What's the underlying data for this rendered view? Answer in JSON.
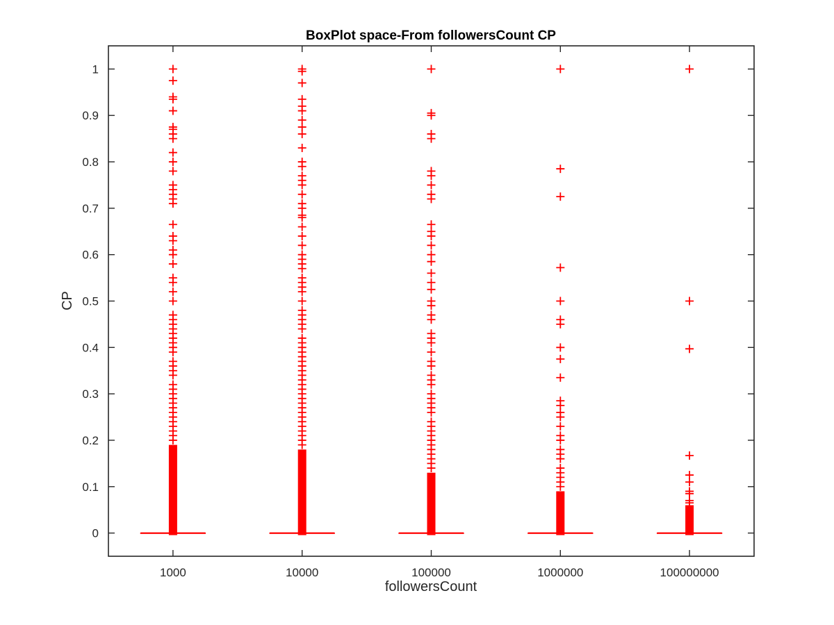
{
  "chart_data": {
    "type": "boxplot",
    "title": "BoxPlot space-From followersCount CP",
    "xlabel": "followersCount",
    "ylabel": "CP",
    "ylim": [
      -0.05,
      1.05
    ],
    "yticks": [
      0,
      0.1,
      0.2,
      0.3,
      0.4,
      0.5,
      0.6,
      0.7,
      0.8,
      0.9,
      1
    ],
    "ytick_labels": [
      "0",
      "0.1",
      "0.2",
      "0.3",
      "0.4",
      "0.5",
      "0.6",
      "0.7",
      "0.8",
      "0.9",
      "1"
    ],
    "categories": [
      "1000",
      "10000",
      "100000",
      "1000000",
      "100000000"
    ],
    "grid": false,
    "color": "#ff0000",
    "boxes": [
      {
        "category": "1000",
        "median": 0,
        "q1": 0,
        "q3": 0,
        "whisker_low": 0,
        "whisker_high": 0,
        "outliers_dense_range": [
          0.0,
          0.19
        ],
        "outliers": [
          1,
          0.975,
          0.94,
          0.935,
          0.91,
          0.875,
          0.87,
          0.86,
          0.85,
          0.82,
          0.8,
          0.78,
          0.75,
          0.74,
          0.73,
          0.72,
          0.71,
          0.665,
          0.64,
          0.63,
          0.61,
          0.6,
          0.58,
          0.55,
          0.54,
          0.52,
          0.5,
          0.47,
          0.46,
          0.45,
          0.44,
          0.43,
          0.42,
          0.41,
          0.4,
          0.39,
          0.37,
          0.36,
          0.35,
          0.34,
          0.32,
          0.31,
          0.3,
          0.29,
          0.28,
          0.27,
          0.26,
          0.25,
          0.24,
          0.23,
          0.22,
          0.21,
          0.2
        ]
      },
      {
        "category": "10000",
        "median": 0,
        "q1": 0,
        "q3": 0,
        "whisker_low": 0,
        "whisker_high": 0,
        "outliers_dense_range": [
          0.0,
          0.18
        ],
        "outliers": [
          1,
          0.995,
          0.97,
          0.935,
          0.92,
          0.91,
          0.89,
          0.875,
          0.86,
          0.83,
          0.8,
          0.79,
          0.77,
          0.76,
          0.75,
          0.73,
          0.71,
          0.7,
          0.685,
          0.68,
          0.66,
          0.64,
          0.62,
          0.6,
          0.59,
          0.58,
          0.57,
          0.55,
          0.54,
          0.53,
          0.52,
          0.5,
          0.48,
          0.47,
          0.46,
          0.45,
          0.44,
          0.42,
          0.41,
          0.4,
          0.39,
          0.38,
          0.37,
          0.36,
          0.35,
          0.34,
          0.33,
          0.32,
          0.31,
          0.3,
          0.29,
          0.28,
          0.27,
          0.26,
          0.25,
          0.24,
          0.23,
          0.22,
          0.21,
          0.2,
          0.19
        ]
      },
      {
        "category": "100000",
        "median": 0,
        "q1": 0,
        "q3": 0,
        "whisker_low": 0,
        "whisker_high": 0,
        "outliers_dense_range": [
          0.0,
          0.13
        ],
        "outliers": [
          1,
          0.905,
          0.9,
          0.86,
          0.85,
          0.78,
          0.77,
          0.75,
          0.73,
          0.72,
          0.665,
          0.65,
          0.64,
          0.62,
          0.6,
          0.585,
          0.56,
          0.54,
          0.525,
          0.5,
          0.49,
          0.47,
          0.46,
          0.43,
          0.42,
          0.41,
          0.39,
          0.37,
          0.36,
          0.34,
          0.33,
          0.32,
          0.3,
          0.29,
          0.28,
          0.27,
          0.26,
          0.24,
          0.23,
          0.22,
          0.21,
          0.2,
          0.19,
          0.18,
          0.17,
          0.16,
          0.15,
          0.14
        ]
      },
      {
        "category": "1000000",
        "median": 0,
        "q1": 0,
        "q3": 0,
        "whisker_low": 0,
        "whisker_high": 0,
        "outliers_dense_range": [
          0.0,
          0.09
        ],
        "outliers": [
          1,
          0.785,
          0.725,
          0.572,
          0.5,
          0.46,
          0.45,
          0.4,
          0.375,
          0.335,
          0.285,
          0.275,
          0.26,
          0.25,
          0.23,
          0.21,
          0.2,
          0.18,
          0.17,
          0.16,
          0.14,
          0.13,
          0.12,
          0.11,
          0.1
        ]
      },
      {
        "category": "100000000",
        "median": 0,
        "q1": 0,
        "q3": 0,
        "whisker_low": 0,
        "whisker_high": 0,
        "outliers_dense_range": [
          0.0,
          0.06
        ],
        "outliers": [
          1,
          0.5,
          0.397,
          0.167,
          0.125,
          0.11,
          0.09,
          0.085,
          0.07,
          0.065
        ]
      }
    ]
  }
}
